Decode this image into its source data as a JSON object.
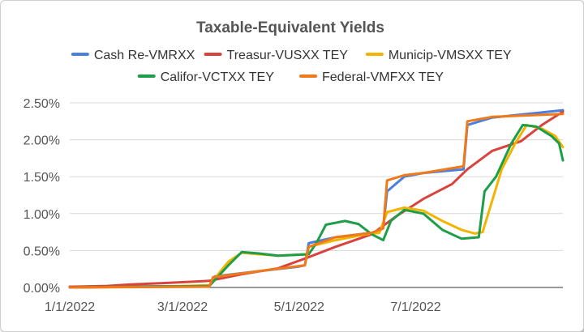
{
  "chart_data": {
    "type": "line",
    "title": "Taxable-Equivalent Yields",
    "xlabel": "",
    "ylabel": "",
    "x_ticks": [
      "1/1/2022",
      "3/1/2022",
      "5/1/2022",
      "7/1/2022"
    ],
    "y_ticks": [
      "0.00%",
      "0.50%",
      "1.00%",
      "1.50%",
      "2.00%",
      "2.50%"
    ],
    "xlim": [
      "2022-01-01",
      "2022-09-16"
    ],
    "ylim": [
      0,
      2.5
    ],
    "grid": true,
    "legend": "top",
    "series": [
      {
        "name": "Cash Re-VMRXX",
        "color": "#4a7fe0",
        "points": [
          [
            "2022-01-01",
            0.01
          ],
          [
            "2022-03-15",
            0.02
          ],
          [
            "2022-03-18",
            0.15
          ],
          [
            "2022-04-10",
            0.22
          ],
          [
            "2022-04-30",
            0.28
          ],
          [
            "2022-05-04",
            0.3
          ],
          [
            "2022-05-06",
            0.6
          ],
          [
            "2022-05-20",
            0.68
          ],
          [
            "2022-06-08",
            0.74
          ],
          [
            "2022-06-14",
            0.8
          ],
          [
            "2022-06-16",
            1.3
          ],
          [
            "2022-06-25",
            1.5
          ],
          [
            "2022-07-05",
            1.55
          ],
          [
            "2022-07-26",
            1.6
          ],
          [
            "2022-07-28",
            2.2
          ],
          [
            "2022-08-10",
            2.3
          ],
          [
            "2022-09-16",
            2.4
          ]
        ]
      },
      {
        "name": "Treasur-VUSXX TEY",
        "color": "#d9433d",
        "points": [
          [
            "2022-01-01",
            0.01
          ],
          [
            "2022-01-20",
            0.02
          ],
          [
            "2022-02-01",
            0.04
          ],
          [
            "2022-02-20",
            0.06
          ],
          [
            "2022-03-15",
            0.09
          ],
          [
            "2022-04-01",
            0.18
          ],
          [
            "2022-04-20",
            0.26
          ],
          [
            "2022-05-05",
            0.4
          ],
          [
            "2022-05-20",
            0.55
          ],
          [
            "2022-06-08",
            0.72
          ],
          [
            "2022-06-20",
            0.95
          ],
          [
            "2022-07-05",
            1.2
          ],
          [
            "2022-07-20",
            1.4
          ],
          [
            "2022-07-28",
            1.6
          ],
          [
            "2022-08-10",
            1.85
          ],
          [
            "2022-08-25",
            1.98
          ],
          [
            "2022-09-05",
            2.2
          ],
          [
            "2022-09-16",
            2.38
          ]
        ]
      },
      {
        "name": "Municip-VMSXX TEY",
        "color": "#f2b400",
        "points": [
          [
            "2022-01-01",
            0.0
          ],
          [
            "2022-02-15",
            0.01
          ],
          [
            "2022-03-15",
            0.03
          ],
          [
            "2022-03-25",
            0.35
          ],
          [
            "2022-04-01",
            0.47
          ],
          [
            "2022-04-10",
            0.45
          ],
          [
            "2022-04-20",
            0.43
          ],
          [
            "2022-05-05",
            0.45
          ],
          [
            "2022-05-06",
            0.55
          ],
          [
            "2022-05-20",
            0.64
          ],
          [
            "2022-06-05",
            0.72
          ],
          [
            "2022-06-12",
            0.74
          ],
          [
            "2022-06-16",
            1.02
          ],
          [
            "2022-06-25",
            1.08
          ],
          [
            "2022-07-05",
            1.04
          ],
          [
            "2022-07-15",
            0.9
          ],
          [
            "2022-07-25",
            0.78
          ],
          [
            "2022-08-01",
            0.73
          ],
          [
            "2022-08-05",
            0.75
          ],
          [
            "2022-08-15",
            1.6
          ],
          [
            "2022-08-22",
            1.95
          ],
          [
            "2022-08-28",
            2.2
          ],
          [
            "2022-09-05",
            2.15
          ],
          [
            "2022-09-12",
            2.05
          ],
          [
            "2022-09-16",
            1.9
          ]
        ]
      },
      {
        "name": "Califor-VCTXX TEY",
        "color": "#1e9e49",
        "points": [
          [
            "2022-01-01",
            0.0
          ],
          [
            "2022-03-15",
            0.02
          ],
          [
            "2022-03-25",
            0.3
          ],
          [
            "2022-04-01",
            0.48
          ],
          [
            "2022-04-10",
            0.46
          ],
          [
            "2022-04-20",
            0.43
          ],
          [
            "2022-05-06",
            0.45
          ],
          [
            "2022-05-10",
            0.6
          ],
          [
            "2022-05-15",
            0.85
          ],
          [
            "2022-05-25",
            0.9
          ],
          [
            "2022-06-01",
            0.86
          ],
          [
            "2022-06-08",
            0.72
          ],
          [
            "2022-06-14",
            0.64
          ],
          [
            "2022-06-18",
            0.9
          ],
          [
            "2022-06-25",
            1.05
          ],
          [
            "2022-07-05",
            1.0
          ],
          [
            "2022-07-15",
            0.78
          ],
          [
            "2022-07-25",
            0.66
          ],
          [
            "2022-08-03",
            0.68
          ],
          [
            "2022-08-06",
            1.3
          ],
          [
            "2022-08-12",
            1.5
          ],
          [
            "2022-08-20",
            1.95
          ],
          [
            "2022-08-26",
            2.2
          ],
          [
            "2022-09-02",
            2.18
          ],
          [
            "2022-09-10",
            2.05
          ],
          [
            "2022-09-14",
            1.95
          ],
          [
            "2022-09-16",
            1.72
          ]
        ]
      },
      {
        "name": "Federal-VMFXX TEY",
        "color": "#f07a1a",
        "points": [
          [
            "2022-01-01",
            0.0
          ],
          [
            "2022-03-15",
            0.01
          ],
          [
            "2022-03-17",
            0.14
          ],
          [
            "2022-04-10",
            0.22
          ],
          [
            "2022-05-04",
            0.3
          ],
          [
            "2022-05-06",
            0.55
          ],
          [
            "2022-05-20",
            0.68
          ],
          [
            "2022-06-08",
            0.74
          ],
          [
            "2022-06-14",
            0.8
          ],
          [
            "2022-06-16",
            1.45
          ],
          [
            "2022-06-25",
            1.52
          ],
          [
            "2022-07-05",
            1.55
          ],
          [
            "2022-07-26",
            1.64
          ],
          [
            "2022-07-28",
            2.25
          ],
          [
            "2022-08-10",
            2.31
          ],
          [
            "2022-09-16",
            2.35
          ]
        ]
      }
    ]
  }
}
